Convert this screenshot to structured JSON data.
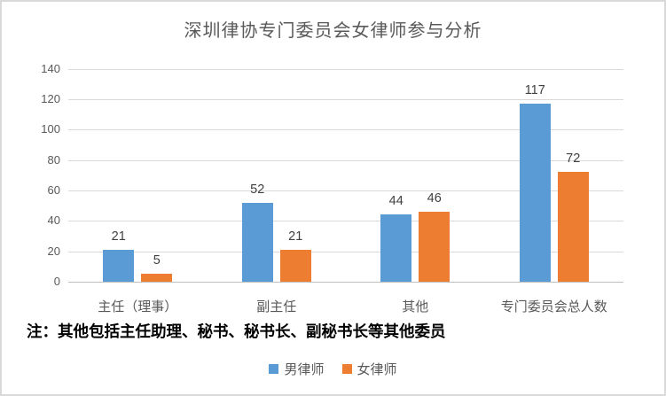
{
  "chart_data": {
    "type": "bar",
    "title": "深圳律协专门委员会女律师参与分析",
    "categories": [
      "主任（理事）",
      "副主任",
      "其他",
      "专门委员会总人数"
    ],
    "series": [
      {
        "name": "男律师",
        "color": "#5B9BD5",
        "values": [
          21,
          52,
          44,
          117
        ]
      },
      {
        "name": "女律师",
        "color": "#ED7D31",
        "values": [
          5,
          21,
          46,
          72
        ]
      }
    ],
    "xlabel": "",
    "ylabel": "",
    "ylim": [
      0,
      140
    ],
    "yticks": [
      0,
      20,
      40,
      60,
      80,
      100,
      120,
      140
    ],
    "grid": true,
    "legend_position": "bottom",
    "note": "注：其他包括主任助理、秘书、秘书长、副秘书长等其他委员"
  },
  "colors": {
    "grid": "#d9d9d9",
    "baseline": "#bfbfbf",
    "tick_text": "#595959",
    "value_text": "#404040",
    "title_text": "#595959",
    "note_text": "#000000",
    "frame_border": "#d9d9d9",
    "background": "#ffffff"
  }
}
